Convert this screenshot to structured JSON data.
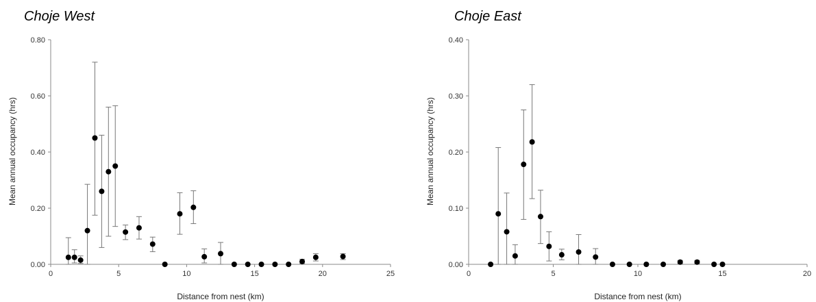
{
  "chart_data": [
    {
      "type": "scatter",
      "title": "Choje West",
      "xlabel": "Distance from nest (km)",
      "ylabel": "Mean annual occupancy (hrs)",
      "xlim": [
        0,
        25
      ],
      "ylim": [
        0,
        0.8
      ],
      "xticks": [
        "0",
        "5",
        "10",
        "15",
        "20",
        "25"
      ],
      "yticks": [
        "0.00",
        "0.20",
        "0.40",
        "0.60",
        "0.80"
      ],
      "grid": false,
      "error_bars": true,
      "points": [
        {
          "x": 1.3,
          "y": 0.025,
          "lo": 0.0,
          "hi": 0.095
        },
        {
          "x": 1.75,
          "y": 0.025,
          "lo": 0.005,
          "hi": 0.052
        },
        {
          "x": 2.2,
          "y": 0.015,
          "lo": 0.003,
          "hi": 0.03
        },
        {
          "x": 2.7,
          "y": 0.12,
          "lo": 0.0,
          "hi": 0.285
        },
        {
          "x": 3.25,
          "y": 0.45,
          "lo": 0.175,
          "hi": 0.72
        },
        {
          "x": 3.75,
          "y": 0.26,
          "lo": 0.06,
          "hi": 0.46
        },
        {
          "x": 4.25,
          "y": 0.33,
          "lo": 0.1,
          "hi": 0.56
        },
        {
          "x": 4.75,
          "y": 0.35,
          "lo": 0.135,
          "hi": 0.565
        },
        {
          "x": 5.5,
          "y": 0.115,
          "lo": 0.088,
          "hi": 0.14
        },
        {
          "x": 6.5,
          "y": 0.13,
          "lo": 0.09,
          "hi": 0.17
        },
        {
          "x": 7.5,
          "y": 0.072,
          "lo": 0.045,
          "hi": 0.097
        },
        {
          "x": 8.4,
          "y": 0.0,
          "lo": 0.0,
          "hi": 0.0
        },
        {
          "x": 9.5,
          "y": 0.18,
          "lo": 0.107,
          "hi": 0.255
        },
        {
          "x": 10.5,
          "y": 0.203,
          "lo": 0.145,
          "hi": 0.262
        },
        {
          "x": 11.3,
          "y": 0.027,
          "lo": 0.005,
          "hi": 0.055
        },
        {
          "x": 12.5,
          "y": 0.038,
          "lo": 0.0,
          "hi": 0.078
        },
        {
          "x": 13.5,
          "y": 0.0,
          "lo": 0.0,
          "hi": 0.0
        },
        {
          "x": 14.5,
          "y": 0.0,
          "lo": 0.0,
          "hi": 0.0
        },
        {
          "x": 15.5,
          "y": 0.0,
          "lo": 0.0,
          "hi": 0.0
        },
        {
          "x": 16.5,
          "y": 0.0,
          "lo": 0.0,
          "hi": 0.0
        },
        {
          "x": 17.5,
          "y": 0.0,
          "lo": 0.0,
          "hi": 0.0
        },
        {
          "x": 18.5,
          "y": 0.01,
          "lo": 0.003,
          "hi": 0.018
        },
        {
          "x": 19.5,
          "y": 0.025,
          "lo": 0.012,
          "hi": 0.038
        },
        {
          "x": 21.5,
          "y": 0.028,
          "lo": 0.017,
          "hi": 0.038
        }
      ]
    },
    {
      "type": "scatter",
      "title": "Choje East",
      "xlabel": "Distance from nest (km)",
      "ylabel": "Mean annual occupancy (hrs)",
      "xlim": [
        0,
        20
      ],
      "ylim": [
        0,
        0.4
      ],
      "xticks": [
        "0",
        "5",
        "10",
        "15",
        "20"
      ],
      "yticks": [
        "0.00",
        "0.10",
        "0.20",
        "0.30",
        "0.40"
      ],
      "grid": false,
      "error_bars": true,
      "points": [
        {
          "x": 1.3,
          "y": 0.0,
          "lo": 0.0,
          "hi": 0.0
        },
        {
          "x": 1.75,
          "y": 0.09,
          "lo": 0.0,
          "hi": 0.208
        },
        {
          "x": 2.25,
          "y": 0.058,
          "lo": 0.0,
          "hi": 0.127
        },
        {
          "x": 2.75,
          "y": 0.015,
          "lo": 0.0,
          "hi": 0.035
        },
        {
          "x": 3.25,
          "y": 0.178,
          "lo": 0.08,
          "hi": 0.275
        },
        {
          "x": 3.75,
          "y": 0.218,
          "lo": 0.117,
          "hi": 0.32
        },
        {
          "x": 4.25,
          "y": 0.085,
          "lo": 0.037,
          "hi": 0.132
        },
        {
          "x": 4.75,
          "y": 0.032,
          "lo": 0.006,
          "hi": 0.058
        },
        {
          "x": 5.5,
          "y": 0.017,
          "lo": 0.008,
          "hi": 0.027
        },
        {
          "x": 6.5,
          "y": 0.022,
          "lo": 0.0,
          "hi": 0.053
        },
        {
          "x": 7.5,
          "y": 0.013,
          "lo": 0.0,
          "hi": 0.028
        },
        {
          "x": 8.5,
          "y": 0.0,
          "lo": 0.0,
          "hi": 0.0
        },
        {
          "x": 9.5,
          "y": 0.0,
          "lo": 0.0,
          "hi": 0.0
        },
        {
          "x": 10.5,
          "y": 0.0,
          "lo": 0.0,
          "hi": 0.0
        },
        {
          "x": 11.5,
          "y": 0.0,
          "lo": 0.0,
          "hi": 0.0
        },
        {
          "x": 12.5,
          "y": 0.004,
          "lo": 0.001,
          "hi": 0.007
        },
        {
          "x": 13.5,
          "y": 0.004,
          "lo": 0.001,
          "hi": 0.007
        },
        {
          "x": 14.5,
          "y": 0.0,
          "lo": 0.0,
          "hi": 0.0
        },
        {
          "x": 15.0,
          "y": 0.0,
          "lo": 0.0,
          "hi": 0.0
        }
      ]
    }
  ]
}
